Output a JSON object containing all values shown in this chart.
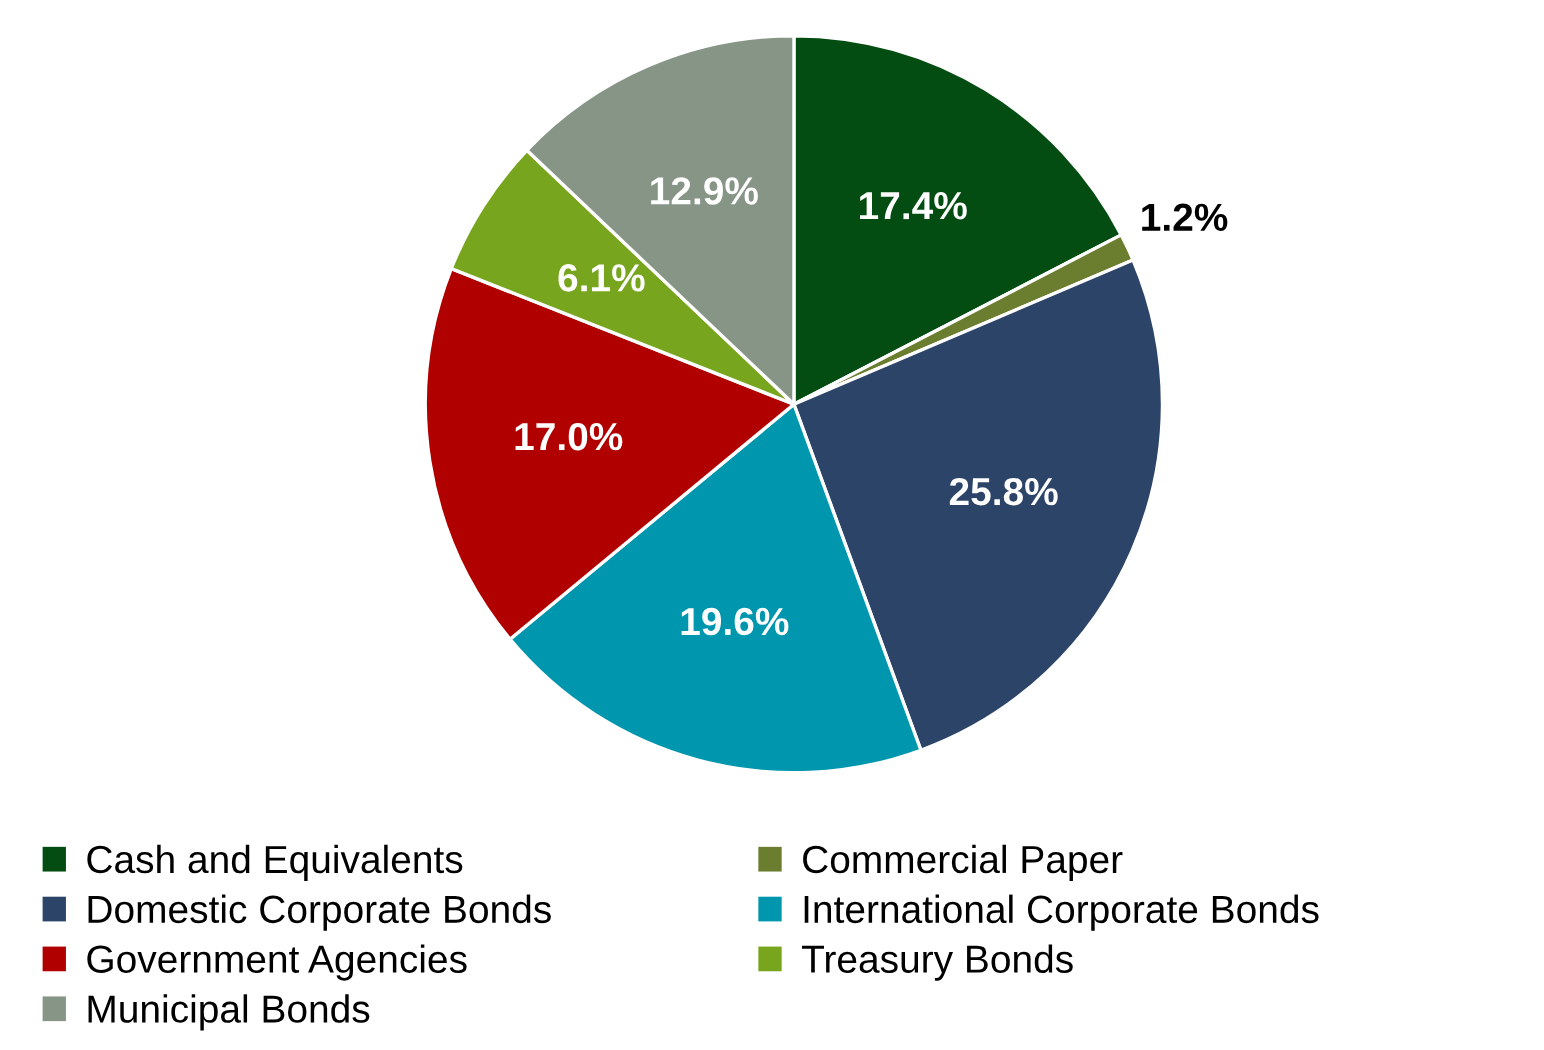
{
  "chart_data": {
    "type": "pie",
    "categories": [
      "Cash and Equivalents",
      "Commercial Paper",
      "Domestic Corporate Bonds",
      "International Corporate Bonds",
      "Government Agencies",
      "Treasury Bonds",
      "Municipal Bonds"
    ],
    "values": [
      17.4,
      1.2,
      25.8,
      19.6,
      17.0,
      6.1,
      12.9
    ],
    "value_labels": [
      "17.4%",
      "1.2%",
      "25.8%",
      "19.6%",
      "17.0%",
      "6.1%",
      "12.9%"
    ],
    "colors": [
      "#034d12",
      "#6b7d2e",
      "#2d4469",
      "#0097ae",
      "#b00000",
      "#78a51e",
      "#879587"
    ],
    "legend": "bottom"
  }
}
